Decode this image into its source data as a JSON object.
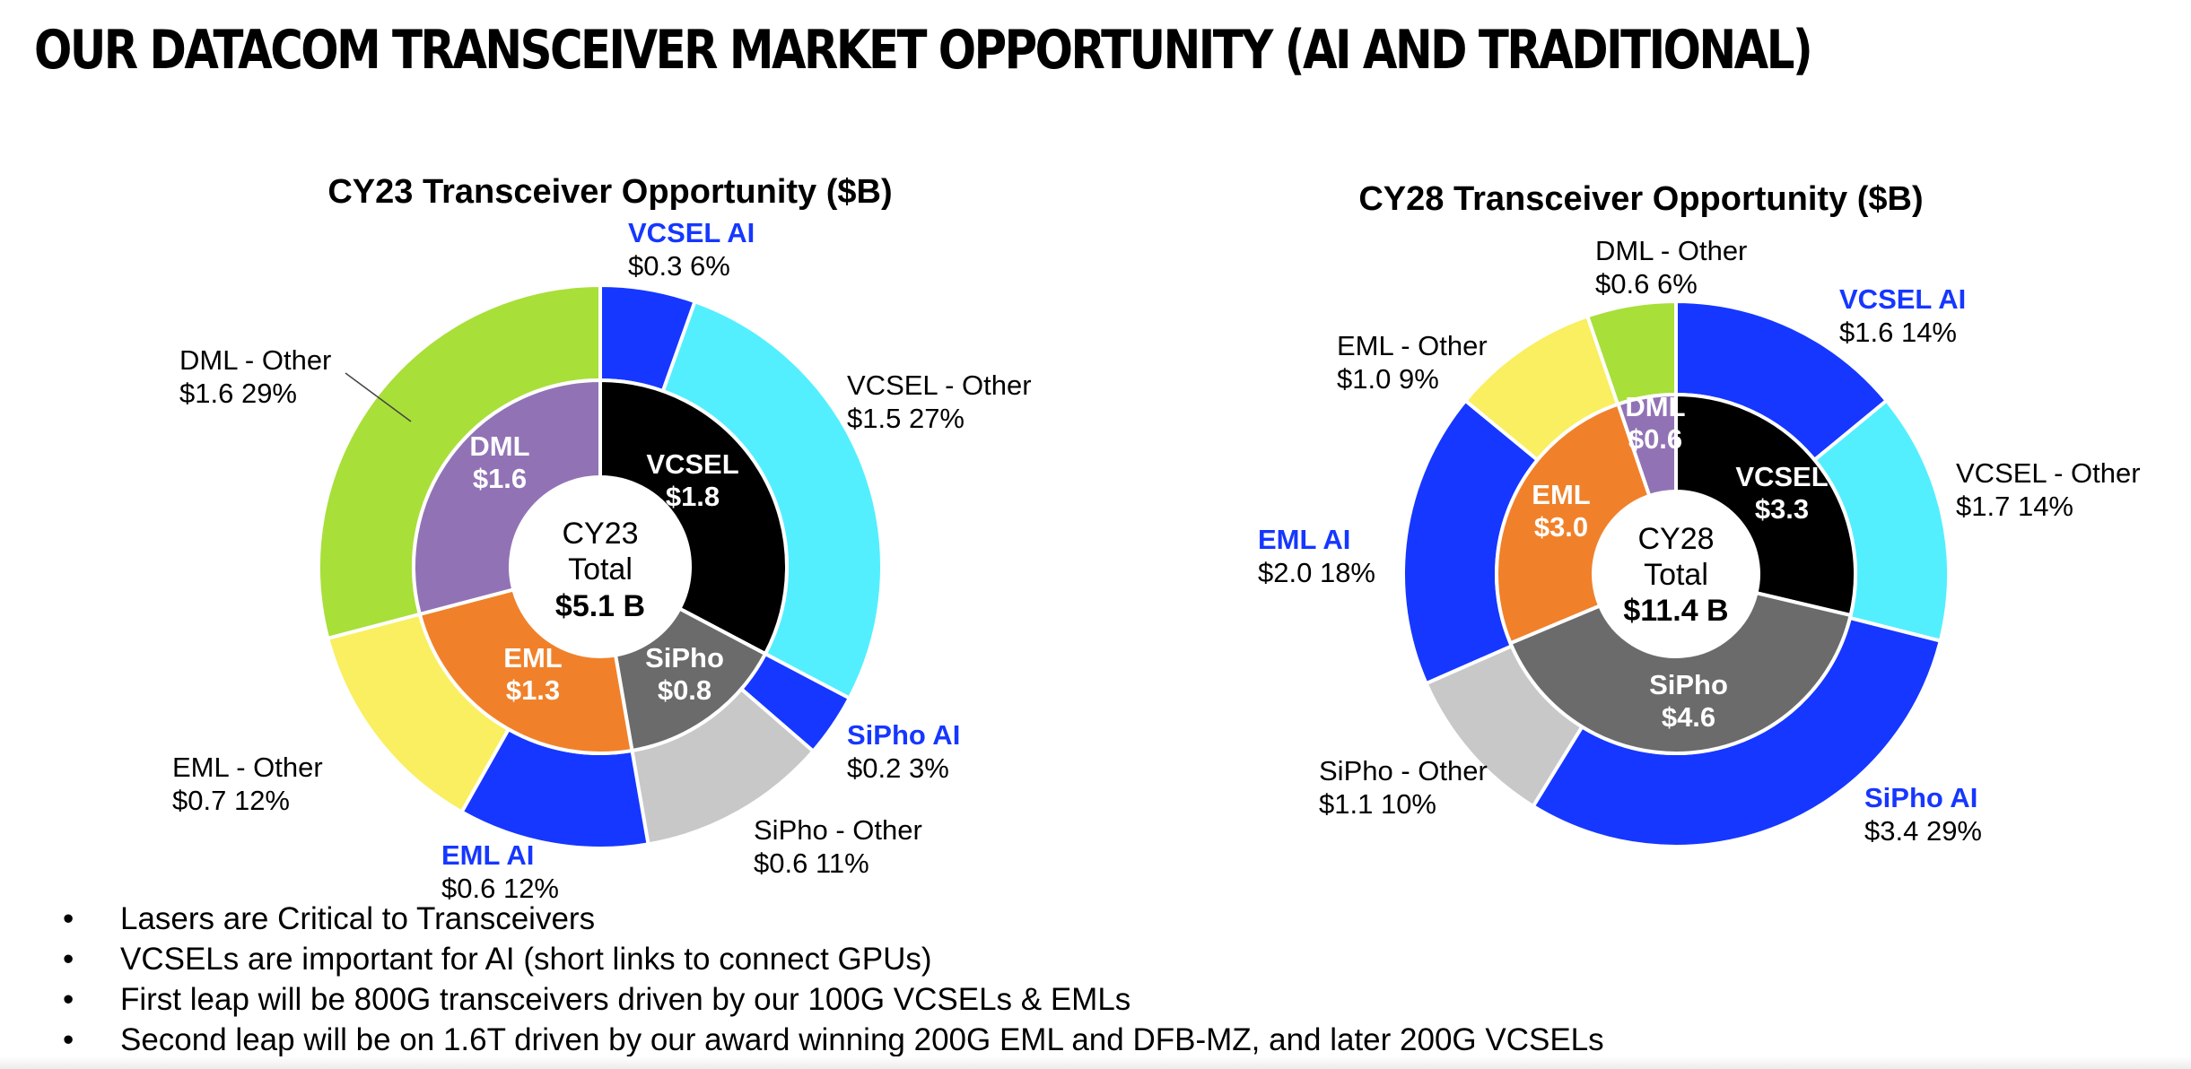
{
  "page": {
    "title": "OUR DATACOM TRANSCEIVER MARKET OPPORTUNITY (AI AND TRADITIONAL)",
    "bullet_marker": "•",
    "bullets": [
      "Lasers are Critical to Transceivers",
      "VCSELs are important for AI (short links to connect GPUs)",
      "First leap will be 800G transceivers driven by our 100G VCSELs & EMLs",
      "Second leap will be on 1.6T driven by our award winning 200G EML and DFB-MZ, and later 200G VCSELs"
    ]
  },
  "colors": {
    "vcsel": "#000000",
    "vcsel_ai": "#1637ff",
    "vcsel_other": "#53efff",
    "sipho": "#6b6b6b",
    "sipho_ai": "#1637ff",
    "sipho_other": "#c8c8c8",
    "eml": "#f0812a",
    "eml_ai": "#1637ff",
    "eml_other": "#f9ef60",
    "dml": "#9173b5",
    "dml_other": "#a8df39",
    "ai_label": "#1637ff"
  },
  "chart_data": [
    {
      "type": "pie",
      "title": "CY23 Transceiver Opportunity ($B)",
      "center_label": [
        "CY23",
        "Total",
        "$5.1 B"
      ],
      "inner": [
        {
          "name": "VCSEL",
          "value": 1.8,
          "label": "$1.8",
          "color": "#000000"
        },
        {
          "name": "SiPho",
          "value": 0.8,
          "label": "$0.8",
          "color": "#6b6b6b"
        },
        {
          "name": "EML",
          "value": 1.3,
          "label": "$1.3",
          "color": "#f0812a"
        },
        {
          "name": "DML",
          "value": 1.6,
          "label": "$1.6",
          "color": "#9173b5"
        }
      ],
      "outer": [
        {
          "name": "VCSEL AI",
          "value": 0.3,
          "label": "$0.3   6%",
          "ai": true,
          "color": "#1637ff"
        },
        {
          "name": "VCSEL - Other",
          "value": 1.5,
          "label": "$1.5   27%",
          "ai": false,
          "color": "#53efff"
        },
        {
          "name": "SiPho AI",
          "value": 0.2,
          "label": "$0.2   3%",
          "ai": true,
          "color": "#1637ff"
        },
        {
          "name": "SiPho - Other",
          "value": 0.6,
          "label": "$0.6   11%",
          "ai": false,
          "color": "#c8c8c8"
        },
        {
          "name": "EML AI",
          "value": 0.6,
          "label": "$0.6   12%",
          "ai": true,
          "color": "#1637ff"
        },
        {
          "name": "EML - Other",
          "value": 0.7,
          "label": "$0.7   12%",
          "ai": false,
          "color": "#f9ef60"
        },
        {
          "name": "DML - Other",
          "value": 1.6,
          "label": "$1.6   29%",
          "ai": false,
          "color": "#a8df39"
        }
      ]
    },
    {
      "type": "pie",
      "title": "CY28 Transceiver Opportunity ($B)",
      "center_label": [
        "CY28",
        "Total",
        "$11.4 B"
      ],
      "inner": [
        {
          "name": "VCSEL",
          "value": 3.3,
          "label": "$3.3",
          "color": "#000000"
        },
        {
          "name": "SiPho",
          "value": 4.6,
          "label": "$4.6",
          "color": "#6b6b6b"
        },
        {
          "name": "EML",
          "value": 3.0,
          "label": "$3.0",
          "color": "#f0812a"
        },
        {
          "name": "DML",
          "value": 0.6,
          "label": "$0.6",
          "color": "#9173b5"
        }
      ],
      "outer": [
        {
          "name": "VCSEL AI",
          "value": 1.6,
          "label": "$1.6   14%",
          "ai": true,
          "color": "#1637ff"
        },
        {
          "name": "VCSEL - Other",
          "value": 1.7,
          "label": "$1.7   14%",
          "ai": false,
          "color": "#53efff"
        },
        {
          "name": "SiPho AI",
          "value": 3.4,
          "label": "$3.4   29%",
          "ai": true,
          "color": "#1637ff"
        },
        {
          "name": "SiPho - Other",
          "value": 1.1,
          "label": "$1.1   10%",
          "ai": false,
          "color": "#c8c8c8"
        },
        {
          "name": "EML AI",
          "value": 2.0,
          "label": "$2.0   18%",
          "ai": true,
          "color": "#1637ff"
        },
        {
          "name": "EML - Other",
          "value": 1.0,
          "label": "$1.0   9%",
          "ai": false,
          "color": "#f9ef60"
        },
        {
          "name": "DML - Other",
          "value": 0.6,
          "label": "$0.6   6%",
          "ai": false,
          "color": "#a8df39"
        }
      ]
    }
  ]
}
